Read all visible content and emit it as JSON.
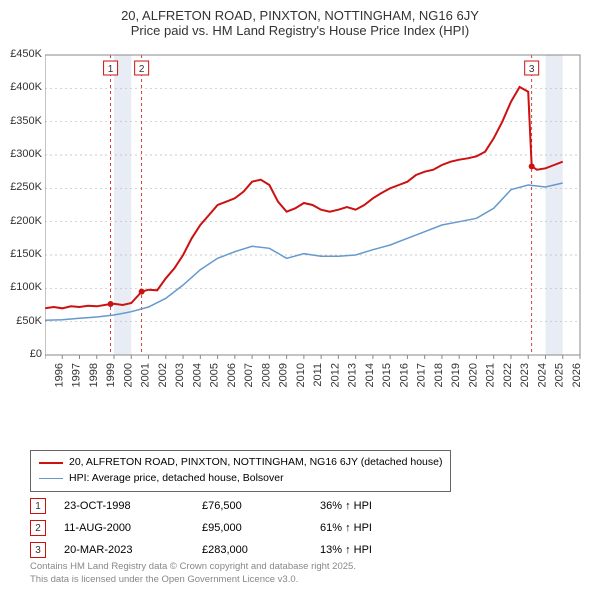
{
  "title_line1": "20, ALFRETON ROAD, PINXTON, NOTTINGHAM, NG16 6JY",
  "title_line2": "Price paid vs. HM Land Registry's House Price Index (HPI)",
  "chart": {
    "type": "line",
    "x_min": 1995,
    "x_max": 2026,
    "y_min": 0,
    "y_max": 450000,
    "y_ticks": [
      0,
      50000,
      100000,
      150000,
      200000,
      250000,
      300000,
      350000,
      400000,
      450000
    ],
    "y_tick_labels": [
      "£0",
      "£50K",
      "£100K",
      "£150K",
      "£200K",
      "£250K",
      "£300K",
      "£350K",
      "£400K",
      "£450K"
    ],
    "x_ticks": [
      1995,
      1996,
      1997,
      1998,
      1999,
      2000,
      2001,
      2002,
      2003,
      2004,
      2005,
      2006,
      2007,
      2008,
      2009,
      2010,
      2011,
      2012,
      2013,
      2014,
      2015,
      2016,
      2017,
      2018,
      2019,
      2020,
      2021,
      2022,
      2023,
      2024,
      2025,
      2026
    ],
    "background_color": "#ffffff",
    "grid_color": "#bbbbbb",
    "grid_dash": "2,3",
    "border_color": "#888888",
    "series": [
      {
        "name": "property",
        "color": "#cc1111",
        "width": 2,
        "data": [
          [
            1995,
            70000
          ],
          [
            1995.5,
            72000
          ],
          [
            1996,
            70000
          ],
          [
            1996.5,
            73000
          ],
          [
            1997,
            72000
          ],
          [
            1997.5,
            74000
          ],
          [
            1998,
            73000
          ],
          [
            1998.8,
            76500
          ],
          [
            1999,
            77000
          ],
          [
            1999.5,
            75000
          ],
          [
            2000,
            78000
          ],
          [
            2000.6,
            95000
          ],
          [
            2001,
            98000
          ],
          [
            2001.5,
            97000
          ],
          [
            2002,
            115000
          ],
          [
            2002.5,
            130000
          ],
          [
            2003,
            150000
          ],
          [
            2003.5,
            175000
          ],
          [
            2004,
            195000
          ],
          [
            2004.5,
            210000
          ],
          [
            2005,
            225000
          ],
          [
            2005.5,
            230000
          ],
          [
            2006,
            235000
          ],
          [
            2006.5,
            245000
          ],
          [
            2007,
            260000
          ],
          [
            2007.5,
            263000
          ],
          [
            2008,
            255000
          ],
          [
            2008.5,
            230000
          ],
          [
            2009,
            215000
          ],
          [
            2009.5,
            220000
          ],
          [
            2010,
            228000
          ],
          [
            2010.5,
            225000
          ],
          [
            2011,
            218000
          ],
          [
            2011.5,
            215000
          ],
          [
            2012,
            218000
          ],
          [
            2012.5,
            222000
          ],
          [
            2013,
            218000
          ],
          [
            2013.5,
            225000
          ],
          [
            2014,
            235000
          ],
          [
            2014.5,
            243000
          ],
          [
            2015,
            250000
          ],
          [
            2015.5,
            255000
          ],
          [
            2016,
            260000
          ],
          [
            2016.5,
            270000
          ],
          [
            2017,
            275000
          ],
          [
            2017.5,
            278000
          ],
          [
            2018,
            285000
          ],
          [
            2018.5,
            290000
          ],
          [
            2019,
            293000
          ],
          [
            2019.5,
            295000
          ],
          [
            2020,
            298000
          ],
          [
            2020.5,
            305000
          ],
          [
            2021,
            325000
          ],
          [
            2021.5,
            350000
          ],
          [
            2022,
            380000
          ],
          [
            2022.5,
            402000
          ],
          [
            2023,
            395000
          ],
          [
            2023.2,
            283000
          ],
          [
            2023.5,
            278000
          ],
          [
            2024,
            280000
          ],
          [
            2024.5,
            285000
          ],
          [
            2025,
            290000
          ]
        ]
      },
      {
        "name": "hpi",
        "color": "#6699cc",
        "width": 1.5,
        "data": [
          [
            1995,
            52000
          ],
          [
            1996,
            53000
          ],
          [
            1997,
            55000
          ],
          [
            1998,
            57000
          ],
          [
            1999,
            60000
          ],
          [
            2000,
            65000
          ],
          [
            2001,
            72000
          ],
          [
            2002,
            85000
          ],
          [
            2003,
            105000
          ],
          [
            2004,
            128000
          ],
          [
            2005,
            145000
          ],
          [
            2006,
            155000
          ],
          [
            2007,
            163000
          ],
          [
            2008,
            160000
          ],
          [
            2009,
            145000
          ],
          [
            2010,
            152000
          ],
          [
            2011,
            148000
          ],
          [
            2012,
            148000
          ],
          [
            2013,
            150000
          ],
          [
            2014,
            158000
          ],
          [
            2015,
            165000
          ],
          [
            2016,
            175000
          ],
          [
            2017,
            185000
          ],
          [
            2018,
            195000
          ],
          [
            2019,
            200000
          ],
          [
            2020,
            205000
          ],
          [
            2021,
            220000
          ],
          [
            2022,
            248000
          ],
          [
            2023,
            255000
          ],
          [
            2024,
            252000
          ],
          [
            2025,
            258000
          ]
        ]
      }
    ],
    "sale_markers": [
      {
        "index": 1,
        "x": 1998.8,
        "color": "#cc1111"
      },
      {
        "index": 2,
        "x": 2000.6,
        "color": "#cc1111"
      },
      {
        "index": 3,
        "x": 2023.2,
        "color": "#cc1111"
      }
    ],
    "shaded_bands": [
      {
        "x_start": 1999,
        "x_end": 2000,
        "color": "#e8edf5"
      },
      {
        "x_start": 2024,
        "x_end": 2025,
        "color": "#e8edf5"
      }
    ]
  },
  "legend": {
    "items": [
      {
        "color": "#cc1111",
        "width": 2,
        "label": "20, ALFRETON ROAD, PINXTON, NOTTINGHAM, NG16 6JY (detached house)"
      },
      {
        "color": "#6699cc",
        "width": 1.5,
        "label": "HPI: Average price, detached house, Bolsover"
      }
    ]
  },
  "sales": [
    {
      "idx": "1",
      "date": "23-OCT-1998",
      "price": "£76,500",
      "pct": "36% ↑ HPI",
      "color": "#cc1111"
    },
    {
      "idx": "2",
      "date": "11-AUG-2000",
      "price": "£95,000",
      "pct": "61% ↑ HPI",
      "color": "#cc1111"
    },
    {
      "idx": "3",
      "date": "20-MAR-2023",
      "price": "£283,000",
      "pct": "13% ↑ HPI",
      "color": "#cc1111"
    }
  ],
  "footer_line1": "Contains HM Land Registry data © Crown copyright and database right 2025.",
  "footer_line2": "This data is licensed under the Open Government Licence v3.0."
}
